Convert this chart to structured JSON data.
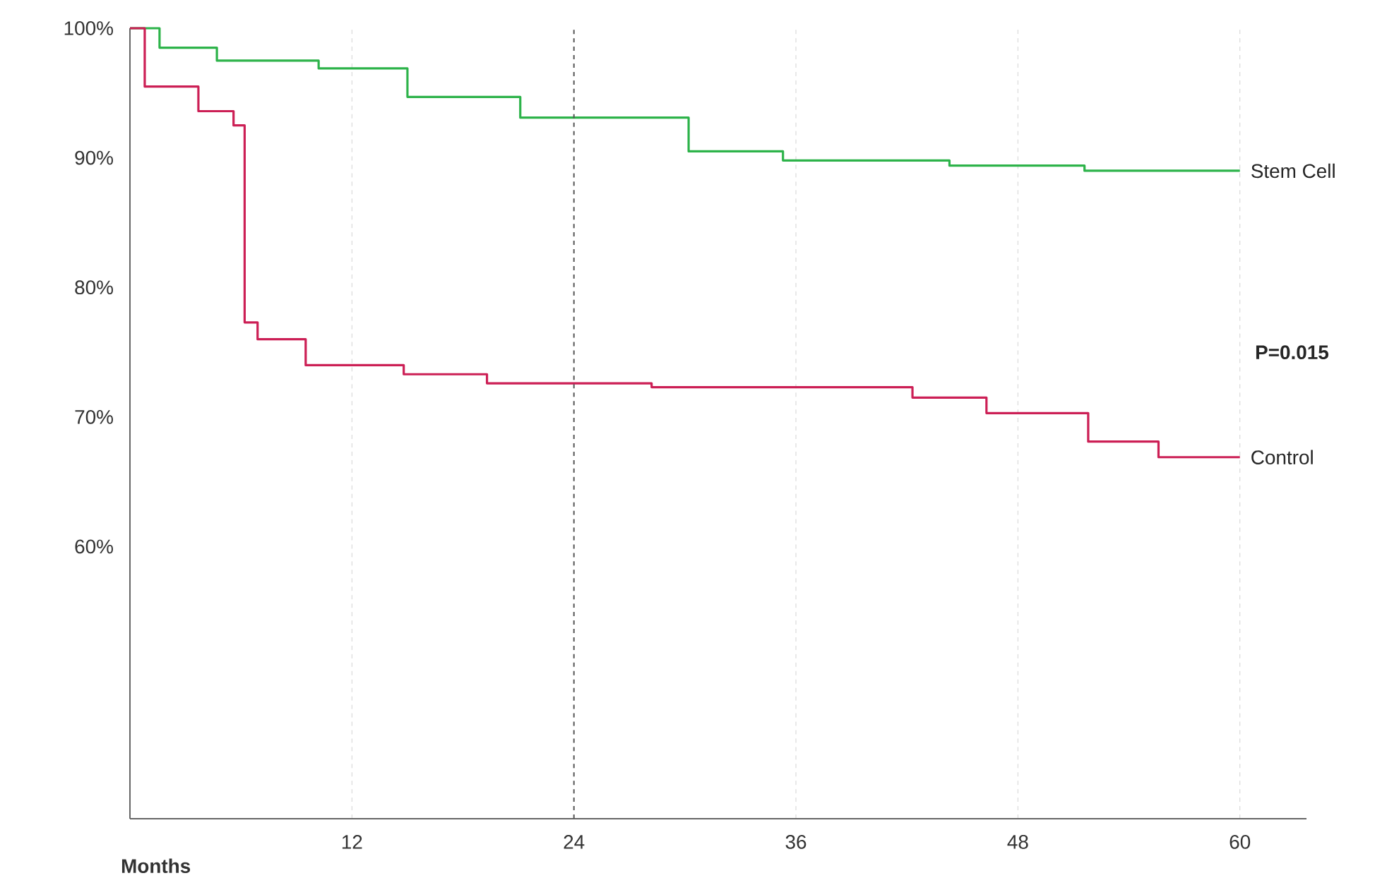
{
  "chart_data": {
    "type": "step",
    "xlabel": "Months",
    "xlim": [
      0,
      63.6
    ],
    "xticks": [
      12,
      24,
      36,
      48,
      60
    ],
    "ylim": [
      39,
      100
    ],
    "yticks": [
      {
        "value": 60,
        "label": "60%"
      },
      {
        "value": 70,
        "label": "70%"
      },
      {
        "value": 80,
        "label": "80%"
      },
      {
        "value": 90,
        "label": "90%"
      },
      {
        "value": 100,
        "label": "100%"
      }
    ],
    "grid": "x",
    "line_style": "solid",
    "marker": "none",
    "series": [
      {
        "name": "Stem Cell",
        "color": "#2db34a",
        "x": [
          0,
          1.6,
          4.7,
          10.2,
          15.0,
          21.1,
          30.2,
          35.3,
          44.3,
          51.6,
          60
        ],
        "values": [
          100,
          98.5,
          97.5,
          96.9,
          94.7,
          93.1,
          90.5,
          89.8,
          89.4,
          89.0,
          89.0
        ]
      },
      {
        "name": "Control",
        "color": "#cc1f55",
        "x": [
          0,
          0.8,
          3.7,
          5.6,
          6.2,
          6.9,
          9.5,
          14.8,
          19.3,
          28.2,
          42.3,
          46.3,
          51.8,
          55.6,
          60
        ],
        "values": [
          100,
          95.5,
          93.6,
          92.5,
          77.3,
          76.0,
          74.0,
          73.3,
          72.6,
          72.3,
          71.5,
          70.3,
          68.1,
          66.9,
          66.9
        ]
      }
    ],
    "ref_lines": [
      {
        "axis": "x",
        "value": 24,
        "color": "#555555",
        "line_style": "dashed"
      }
    ],
    "annotations": [
      "P=0.015"
    ]
  }
}
